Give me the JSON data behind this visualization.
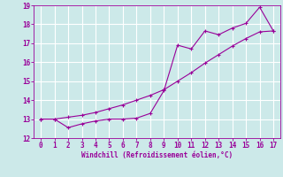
{
  "xlabel": "Windchill (Refroidissement éolien,°C)",
  "xlim": [
    -0.5,
    17.5
  ],
  "ylim": [
    12,
    19
  ],
  "xticks": [
    0,
    1,
    2,
    3,
    4,
    5,
    6,
    7,
    8,
    9,
    10,
    11,
    12,
    13,
    14,
    15,
    16,
    17
  ],
  "yticks": [
    12,
    13,
    14,
    15,
    16,
    17,
    18,
    19
  ],
  "bg_color": "#cce9e9",
  "line_color": "#990099",
  "grid_color": "#b0d8d8",
  "line1_x": [
    0,
    1,
    2,
    3,
    4,
    5,
    6,
    7,
    8,
    9,
    10,
    11,
    12,
    13,
    14,
    15,
    16,
    17
  ],
  "line1_y": [
    13.0,
    13.0,
    12.55,
    12.75,
    12.9,
    13.0,
    13.0,
    13.05,
    13.3,
    14.5,
    16.9,
    16.7,
    17.65,
    17.45,
    17.8,
    18.05,
    18.9,
    17.65
  ],
  "line2_x": [
    0,
    1,
    2,
    3,
    4,
    5,
    6,
    7,
    8,
    9,
    10,
    11,
    12,
    13,
    14,
    15,
    16,
    17
  ],
  "line2_y": [
    13.0,
    13.0,
    13.1,
    13.2,
    13.35,
    13.55,
    13.75,
    14.0,
    14.25,
    14.55,
    15.0,
    15.45,
    15.95,
    16.4,
    16.85,
    17.25,
    17.6,
    17.65
  ]
}
